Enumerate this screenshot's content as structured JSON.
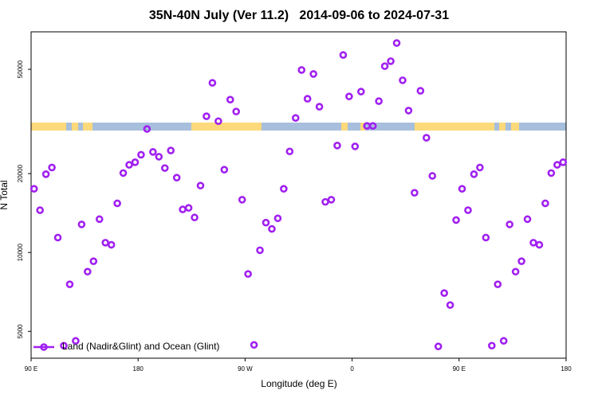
{
  "chart_data": {
    "type": "scatter",
    "title": "35N-40N July (Ver 11.2)   2014-09-06 to 2024-07-31",
    "x_label": "Longitude (deg E)",
    "y_label": "N Total",
    "log_y": true,
    "legend_position": "lower left",
    "xlim": [
      90,
      540
    ],
    "ylim": [
      3950,
      69500
    ],
    "xticks": [
      {
        "value": 90,
        "label": "90 E"
      },
      180,
      {
        "value": 270,
        "label": "90 W"
      },
      {
        "value": 360,
        "label": "0"
      },
      {
        "value": 450,
        "label": "90 E"
      },
      {
        "value": 540,
        "label": "180"
      }
    ],
    "yticks": [
      5000,
      10000,
      20000,
      50000
    ],
    "x": [
      92.5,
      97.5,
      102.5,
      107.5,
      112.5,
      117.5,
      122.5,
      127.5,
      132.5,
      137.5,
      142.5,
      147.5,
      152.5,
      157.5,
      162.5,
      167.5,
      172.5,
      177.5,
      182.5,
      187.5,
      192.5,
      197.5,
      202.5,
      207.5,
      212.5,
      217.5,
      222.5,
      227.5,
      232.5,
      237.5,
      242.5,
      247.5,
      252.5,
      257.5,
      262.5,
      267.5,
      272.5,
      277.5,
      282.5,
      287.5,
      292.5,
      297.5,
      302.5,
      307.5,
      312.5,
      317.5,
      322.5,
      327.5,
      332.5,
      337.5,
      342.5,
      347.5,
      352.5,
      357.5,
      362.5,
      367.5,
      372.5,
      377.5,
      382.5,
      387.5,
      392.5,
      397.5,
      402.5,
      407.5,
      412.5,
      417.5,
      422.5,
      427.5,
      432.5,
      437.5,
      442.5,
      447.5,
      452.5,
      457.5,
      462.5,
      467.5,
      472.5,
      477.5,
      482.5,
      487.5,
      492.5,
      497.5,
      502.5,
      507.5,
      512.5,
      517.5,
      522.5,
      527.5,
      532.5,
      537.5
    ],
    "series": [
      {
        "name": "Land (Nadir&Glint) and Ocean (Glint)",
        "color": "#a020f0",
        "values": [
          17500,
          14500,
          19900,
          21100,
          11400,
          4410,
          7560,
          4600,
          12800,
          8450,
          9260,
          13400,
          10900,
          10700,
          15400,
          20100,
          21600,
          22100,
          23600,
          29600,
          24200,
          23200,
          21000,
          24500,
          19300,
          14600,
          14800,
          13600,
          18000,
          33100,
          44400,
          31700,
          20700,
          38300,
          34500,
          15900,
          8280,
          4440,
          10200,
          13000,
          12300,
          13500,
          17500,
          24300,
          32600,
          49700,
          38600,
          48000,
          36000,
          15600,
          15900,
          25600,
          56700,
          39400,
          25400,
          41100,
          30400,
          30400,
          37800,
          51400,
          53700,
          63000,
          45400,
          34800,
          16900,
          41400,
          27400,
          19600,
          4380,
          7000,
          6300,
          13300,
          17500,
          14500,
          19900,
          21100,
          11400,
          4410,
          7560,
          4600,
          12800,
          8450,
          9260,
          13400,
          10900,
          10700,
          15400,
          20100,
          21600,
          22100
        ]
      }
    ]
  }
}
